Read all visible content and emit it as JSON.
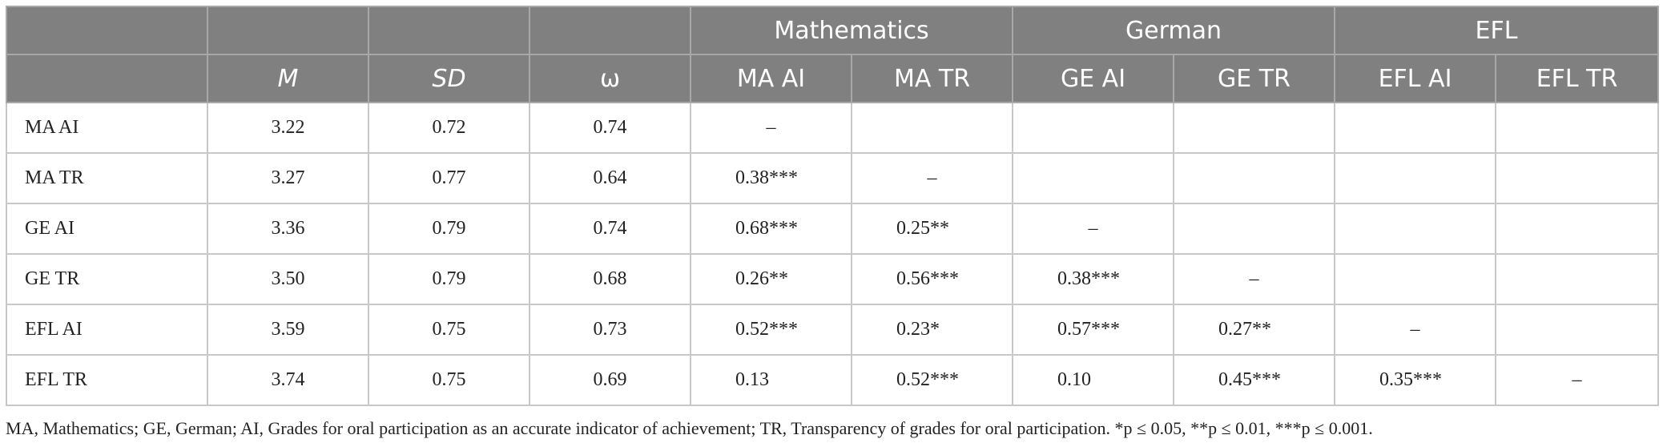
{
  "table": {
    "header_groups": [
      {
        "label": "Mathematics",
        "span": 2
      },
      {
        "label": "German",
        "span": 2
      },
      {
        "label": "EFL",
        "span": 2
      }
    ],
    "columns": [
      "M",
      "SD",
      "ω",
      "MA AI",
      "MA TR",
      "GE AI",
      "GE TR",
      "EFL AI",
      "EFL TR"
    ],
    "rows": [
      [
        "MA AI",
        "3.22",
        "0.72",
        "0.74",
        "–",
        null,
        null,
        null,
        null,
        null
      ],
      [
        "MA TR",
        "3.27",
        "0.77",
        "0.64",
        "0.38***",
        "–",
        null,
        null,
        null,
        null
      ],
      [
        "GE AI",
        "3.36",
        "0.79",
        "0.74",
        "0.68***",
        "0.25**",
        "–",
        null,
        null,
        null
      ],
      [
        "GE TR",
        "3.50",
        "0.79",
        "0.68",
        "0.26**",
        "0.56***",
        "0.38***",
        "–",
        null,
        null
      ],
      [
        "EFL AI",
        "3.59",
        "0.75",
        "0.73",
        "0.52***",
        "0.23*",
        "0.57***",
        "0.27**",
        "–",
        null
      ],
      [
        "EFL TR",
        "3.74",
        "0.75",
        "0.69",
        "0.13",
        "0.52***",
        "0.10",
        "0.45***",
        "0.35***",
        "–"
      ]
    ]
  },
  "footnote": "MA, Mathematics; GE, German; AI, Grades for oral participation as an accurate indicator of achievement; TR, Transparency of grades for oral participation. *p ≤ 0.05, **p ≤ 0.01, ***p ≤ 0.001."
}
